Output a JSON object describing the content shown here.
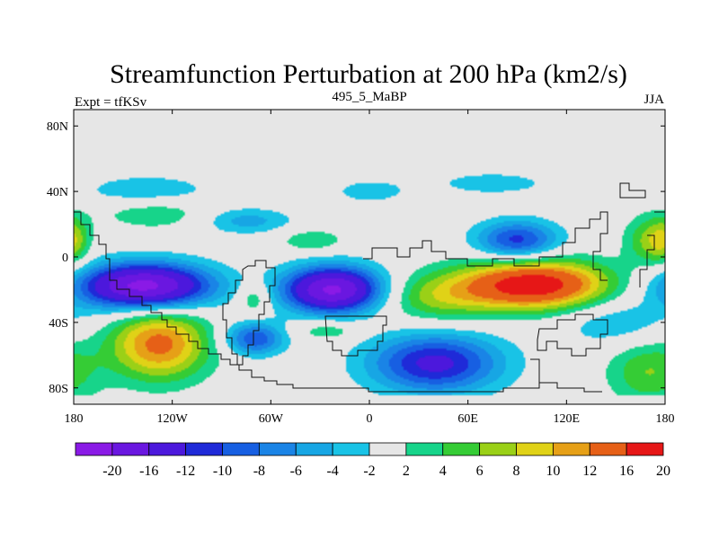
{
  "chart_data": {
    "type": "heatmap",
    "title": "Streamfunction Perturbation at 200 hPa (km2/s)",
    "left_string": "Expt = tfKSv",
    "center_string": "495_5_MaBP",
    "right_string": "JJA",
    "xlim": [
      -180,
      180
    ],
    "ylim": [
      -90,
      90
    ],
    "x_ticks": [
      {
        "value": -180,
        "label": "180"
      },
      {
        "value": -120,
        "label": "120W"
      },
      {
        "value": -60,
        "label": "60W"
      },
      {
        "value": 0,
        "label": "0"
      },
      {
        "value": 60,
        "label": "60E"
      },
      {
        "value": 120,
        "label": "120E"
      },
      {
        "value": 180,
        "label": "180"
      }
    ],
    "y_ticks": [
      {
        "value": 80,
        "label": "80N"
      },
      {
        "value": 40,
        "label": "40N"
      },
      {
        "value": 0,
        "label": "0"
      },
      {
        "value": -40,
        "label": "40S"
      },
      {
        "value": -80,
        "label": "80S"
      }
    ],
    "contour_levels": [
      -20,
      -16,
      -12,
      -10,
      -8,
      -6,
      -4,
      -2,
      2,
      4,
      6,
      8,
      10,
      12,
      16,
      20
    ],
    "colorbar_labels": [
      "-20",
      "-16",
      "-12",
      "-10",
      "-8",
      "-6",
      "-4",
      "-2",
      "2",
      "4",
      "6",
      "8",
      "10",
      "12",
      "16",
      "20"
    ],
    "colors": [
      "#8a1ae6",
      "#6a17e0",
      "#4c18dc",
      "#1f2ad8",
      "#175fe2",
      "#1a84e6",
      "#17a6e4",
      "#19c3e6",
      "#e6e6e6",
      "#17d48a",
      "#35cc35",
      "#9ad017",
      "#e0d217",
      "#e6a017",
      "#e66017",
      "#e61717"
    ],
    "field_features": [
      {
        "lon": -137,
        "lat": -18,
        "lon_radius": 40,
        "lat_radius": 14,
        "value": -22
      },
      {
        "lon": -22,
        "lat": -20,
        "lon_radius": 30,
        "lat_radius": 14,
        "value": -21
      },
      {
        "lon": 100,
        "lat": -17,
        "lon_radius": 45,
        "lat_radius": 15,
        "value": 19
      },
      {
        "lon": -128,
        "lat": -53,
        "lon_radius": 30,
        "lat_radius": 22,
        "value": 13
      },
      {
        "lon": 40,
        "lat": -65,
        "lon_radius": 40,
        "lat_radius": 18,
        "value": -13
      },
      {
        "lon": 90,
        "lat": 10,
        "lon_radius": 25,
        "lat_radius": 12,
        "value": -11
      },
      {
        "lon": -70,
        "lat": -50,
        "lon_radius": 18,
        "lat_radius": 10,
        "value": -10
      },
      {
        "lon": -75,
        "lat": 22,
        "lon_radius": 28,
        "lat_radius": 8,
        "value": -5
      },
      {
        "lon": -135,
        "lat": 40,
        "lon_radius": 40,
        "lat_radius": 10,
        "value": -4
      },
      {
        "lon": -130,
        "lat": 27,
        "lon_radius": 35,
        "lat_radius": 10,
        "value": 4
      },
      {
        "lon": 0,
        "lat": 40,
        "lon_radius": 25,
        "lat_radius": 8,
        "value": -3
      },
      {
        "lon": -35,
        "lat": 10,
        "lon_radius": 20,
        "lat_radius": 7,
        "value": 4
      },
      {
        "lon": -25,
        "lat": -45,
        "lon_radius": 20,
        "lat_radius": 6,
        "value": 4
      },
      {
        "lon": -70,
        "lat": -25,
        "lon_radius": 10,
        "lat_radius": 10,
        "value": 5
      },
      {
        "lon": 75,
        "lat": 45,
        "lon_radius": 40,
        "lat_radius": 8,
        "value": -3
      },
      {
        "lon": 170,
        "lat": -70,
        "lon_radius": 25,
        "lat_radius": 20,
        "value": 6
      },
      {
        "lon": 170,
        "lat": 10,
        "lon_radius": 15,
        "lat_radius": 15,
        "value": 6
      },
      {
        "lon": -180,
        "lat": 10,
        "lon_radius": 10,
        "lat_radius": 15,
        "value": 5
      },
      {
        "lon": 150,
        "lat": -40,
        "lon_radius": 35,
        "lat_radius": 15,
        "value": -4
      },
      {
        "lon": 40,
        "lat": -25,
        "lon_radius": 35,
        "lat_radius": 15,
        "value": 6
      }
    ]
  }
}
